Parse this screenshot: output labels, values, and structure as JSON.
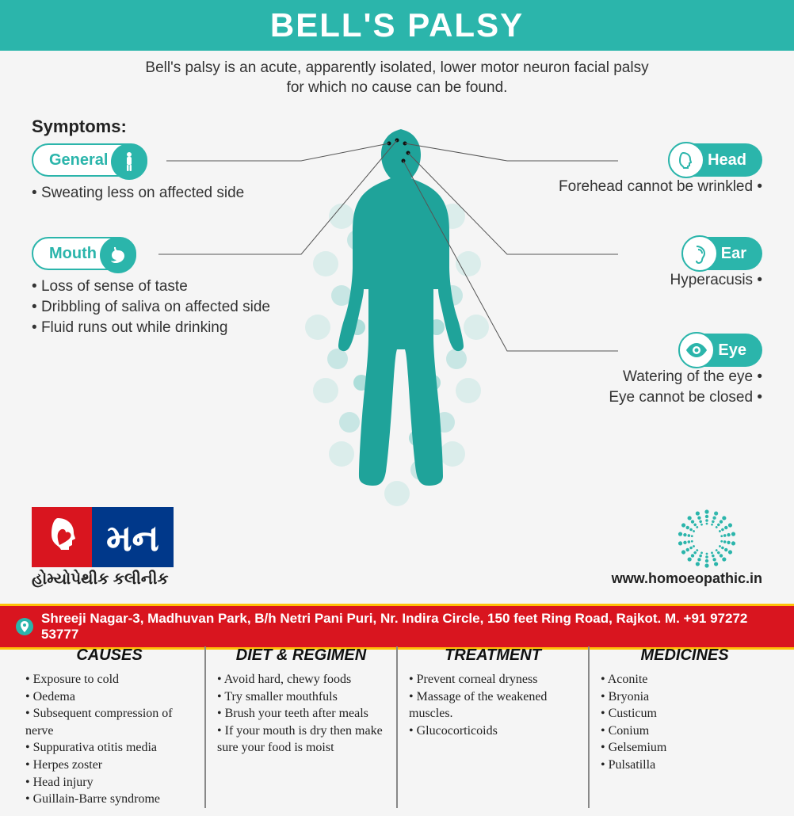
{
  "colors": {
    "teal": "#2bb5ab",
    "red": "#d9151f",
    "blue": "#00388a",
    "yellow": "#ffc107",
    "text": "#333333",
    "bg": "#f5f5f5"
  },
  "title": "BELL'S PALSY",
  "subtitle": "Bell's palsy is an acute, apparently isolated, lower motor neuron facial palsy for which no cause can be found.",
  "symptoms_label": "Symptoms:",
  "groups": {
    "general": {
      "label": "General",
      "items": [
        "Sweating less on affected side"
      ]
    },
    "mouth": {
      "label": "Mouth",
      "items": [
        "Loss of sense of taste",
        "Dribbling of saliva on affected side",
        "Fluid runs out while drinking"
      ]
    },
    "head": {
      "label": "Head",
      "items": [
        "Forehead cannot be wrinkled"
      ]
    },
    "ear": {
      "label": "Ear",
      "items": [
        "Hyperacusis"
      ]
    },
    "eye": {
      "label": "Eye",
      "items": [
        "Watering of the eye",
        "Eye cannot be closed"
      ]
    }
  },
  "logo": {
    "main": "મન",
    "sub": "હોમ્યોપેથીક કલીનીક"
  },
  "website": "www.homoeopathic.in",
  "address": "Shreeji Nagar-3, Madhuvan Park, B/h Netri Pani Puri, Nr. Indira Circle, 150 feet Ring Road, Rajkot. M. +91 97272 53777",
  "columns": {
    "causes": {
      "title": "CAUSES",
      "items": [
        "Exposure to cold",
        "Oedema",
        "Subsequent compression of nerve",
        "Suppurativa otitis media",
        "Herpes zoster",
        "Head injury",
        "Guillain-Barre syndrome"
      ]
    },
    "diet": {
      "title": "DIET & REGIMEN",
      "items": [
        "Avoid hard, chewy foods",
        "Try smaller mouthfuls",
        "Brush your teeth after meals",
        "If your mouth is dry then make sure your food is moist"
      ]
    },
    "treatment": {
      "title": "TREATMENT",
      "items": [
        "Prevent corneal dryness",
        "Massage of the weakened muscles.",
        "Glucocorticoids"
      ]
    },
    "medicines": {
      "title": "MEDICINES",
      "items": [
        "Aconite",
        "Bryonia",
        "Custicum",
        "Conium",
        "Gelsemium",
        "Pulsatilla"
      ]
    }
  }
}
